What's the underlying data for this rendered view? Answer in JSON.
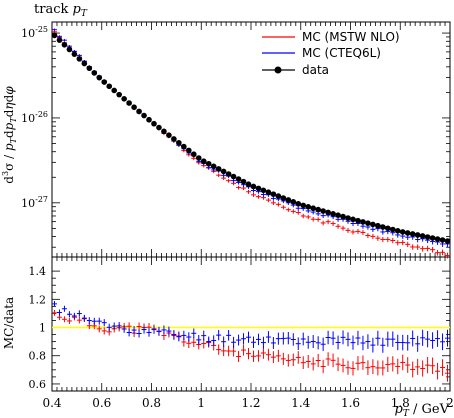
{
  "chart_data": [
    {
      "panel": "main",
      "type": "scatter",
      "title": "track p_T",
      "ylabel": "d³σ / p_T dp_T dη dφ",
      "xlabel": "",
      "xlim": [
        0.4,
        2.0
      ],
      "ylim": [
        2.3e-28,
        1.35e-25
      ],
      "yscale": "log",
      "y_ticks": [
        {
          "value": 1e-25,
          "label": "10^-25"
        },
        {
          "value": 1e-26,
          "label": "10^-26"
        },
        {
          "value": 1e-27,
          "label": "10^-27"
        }
      ],
      "legend": {
        "position": "top-right",
        "entries": [
          "MC (MSTW NLO)",
          "MC (CTEQ6L)",
          "data"
        ]
      },
      "series": [
        {
          "name": "MC (MSTW NLO)",
          "color": "#ff0000",
          "marker": "error-bar"
        },
        {
          "name": "MC (CTEQ6L)",
          "color": "#0000ff",
          "marker": "error-bar"
        },
        {
          "name": "data",
          "color": "#000000",
          "marker": "circle",
          "x": [
            0.4,
            0.6,
            0.8,
            1.0,
            1.2,
            1.4,
            1.6,
            1.8,
            2.0
          ],
          "y": [
            1e-25,
            2.8e-26,
            9e-27,
            3.2e-27,
            1.6e-27,
            9.5e-28,
            6.5e-28,
            4.6e-28,
            3.5e-28
          ]
        }
      ]
    },
    {
      "panel": "ratio",
      "type": "scatter",
      "xlabel": "p_T / GeV",
      "ylabel": "MC/data",
      "xlim": [
        0.4,
        2.0
      ],
      "ylim": [
        0.55,
        1.5
      ],
      "x_ticks": [
        "0.4",
        "0.6",
        "0.8",
        "1",
        "1.2",
        "1.4",
        "1.6",
        "1.8",
        "2"
      ],
      "y_ticks": [
        "0.6",
        "0.8",
        "1",
        "1.2",
        "1.4"
      ],
      "reference_line": {
        "value": 1.0,
        "color": "#ffff00"
      },
      "series": [
        {
          "name": "MC (MSTW NLO)",
          "color": "#ff0000",
          "x": [
            0.4,
            0.6,
            0.8,
            1.0,
            1.2,
            1.4,
            1.6,
            1.8,
            2.0
          ],
          "y": [
            1.1,
            1.0,
            0.98,
            0.88,
            0.8,
            0.76,
            0.74,
            0.73,
            0.7
          ]
        },
        {
          "name": "MC (CTEQ6L)",
          "color": "#0000ff",
          "x": [
            0.4,
            0.6,
            0.8,
            1.0,
            1.2,
            1.4,
            1.6,
            1.8,
            2.0
          ],
          "y": [
            1.15,
            1.02,
            0.97,
            0.93,
            0.92,
            0.91,
            0.9,
            0.9,
            0.91
          ]
        }
      ]
    }
  ]
}
